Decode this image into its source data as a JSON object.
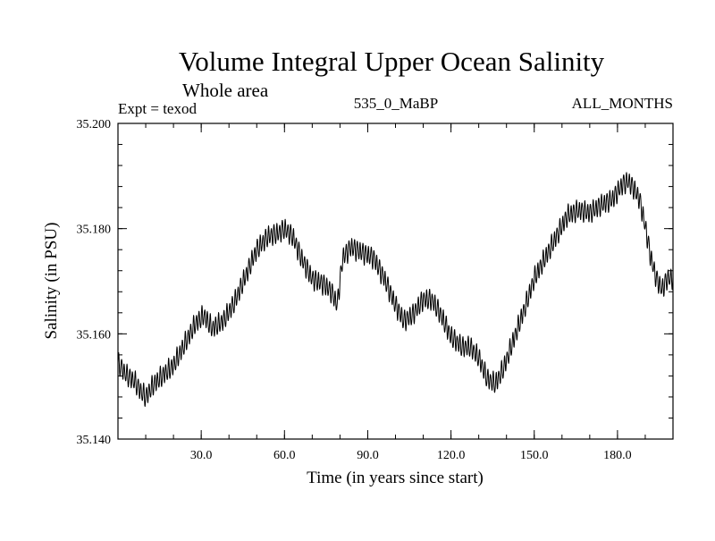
{
  "chart_data": {
    "type": "line",
    "title": "Volume Integral Upper Ocean Salinity",
    "subtitle": "Whole area",
    "left_annotation": "Expt = texod",
    "center_annotation": "535_0_MaBP",
    "right_annotation": "ALL_MONTHS",
    "xlabel": "Time (in years since start)",
    "ylabel": "Salinity (in PSU)",
    "xlim": [
      0,
      200
    ],
    "ylim": [
      35.14,
      35.2
    ],
    "xticks": [
      {
        "value": 30,
        "label": "30.0"
      },
      {
        "value": 60,
        "label": "60.0"
      },
      {
        "value": 90,
        "label": "90.0"
      },
      {
        "value": 120,
        "label": "120.0"
      },
      {
        "value": 150,
        "label": "150.0"
      },
      {
        "value": 180,
        "label": "180.0"
      }
    ],
    "yticks": [
      {
        "value": 35.14,
        "label": "35.140"
      },
      {
        "value": 35.16,
        "label": "35.160"
      },
      {
        "value": 35.18,
        "label": "35.180"
      },
      {
        "value": 35.2,
        "label": "35.200"
      }
    ],
    "minor_x_step": 10,
    "minor_y_step": 0.004,
    "grid": false,
    "series": [
      {
        "name": "Salinity",
        "color": "#000000",
        "seasonal_amplitude": 0.0017,
        "x": [
          0,
          3,
          6,
          8,
          10,
          13,
          16,
          20,
          24,
          28,
          31,
          34,
          38,
          42,
          46,
          50,
          54,
          58,
          60,
          63,
          66,
          70,
          74,
          77,
          79,
          81,
          84,
          88,
          92,
          96,
          100,
          103,
          106,
          110,
          113,
          116,
          120,
          124,
          127,
          130,
          133,
          136,
          139,
          143,
          147,
          150,
          154,
          158,
          162,
          166,
          170,
          174,
          178,
          182,
          184,
          186,
          188,
          190,
          192,
          194,
          196,
          198,
          200
        ],
        "values": [
          35.1545,
          35.1522,
          35.151,
          35.1492,
          35.148,
          35.1505,
          35.152,
          35.154,
          35.158,
          35.162,
          35.1635,
          35.161,
          35.1625,
          35.166,
          35.171,
          35.176,
          35.1785,
          35.1792,
          35.18,
          35.1785,
          35.1745,
          35.1705,
          35.1695,
          35.168,
          35.1655,
          35.1745,
          35.1765,
          35.1755,
          35.1745,
          35.1705,
          35.1655,
          35.1625,
          35.1635,
          35.1665,
          35.1665,
          35.164,
          35.1595,
          35.1575,
          35.1575,
          35.1555,
          35.1515,
          35.1505,
          35.1535,
          35.1595,
          35.1655,
          35.1705,
          35.1745,
          35.1785,
          35.1825,
          35.1835,
          35.183,
          35.1845,
          35.1855,
          35.1885,
          35.189,
          35.1875,
          35.1855,
          35.1805,
          35.1745,
          35.1705,
          35.1685,
          35.1705,
          35.1705
        ]
      }
    ]
  }
}
